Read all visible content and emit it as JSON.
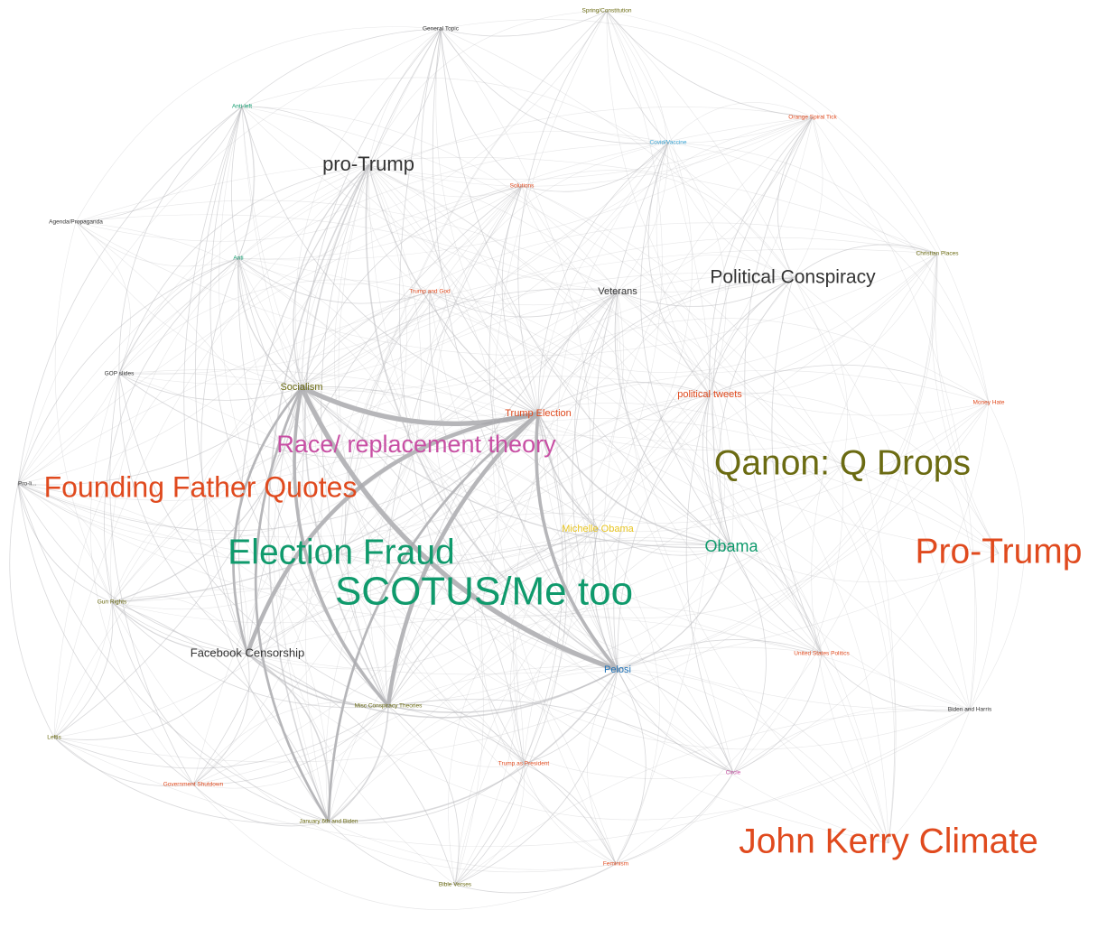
{
  "colors": {
    "edge": "#b9b9bd",
    "edge_heavy": "#a9a9ad",
    "orange": "#e04a1e",
    "green": "#0f9a6c",
    "olive": "#6b6b12",
    "magenta": "#c84fa4",
    "dark": "#333333",
    "blue": "#1d72b8",
    "yellow": "#e8c520",
    "cyan": "#3aa6d6"
  },
  "nodes": [
    {
      "id": "spring",
      "label": "Spring/Constitution",
      "color": "olive",
      "weight": 1
    },
    {
      "id": "general",
      "label": "General Topic",
      "color": "dark",
      "weight": 1
    },
    {
      "id": "antileft",
      "label": "Anti-left",
      "color": "green",
      "weight": 1
    },
    {
      "id": "protrump_a",
      "label": "pro-Trump",
      "color": "dark",
      "weight": 6
    },
    {
      "id": "covid",
      "label": "Covid/Vaccine",
      "color": "cyan",
      "weight": 1
    },
    {
      "id": "orange",
      "label": "Orange Spiral Tick",
      "color": "orange",
      "weight": 1
    },
    {
      "id": "agenda",
      "label": "Agenda/Propaganda",
      "color": "dark",
      "weight": 1
    },
    {
      "id": "anti",
      "label": "Anti",
      "color": "green",
      "weight": 1
    },
    {
      "id": "trumpgod",
      "label": "Trump and God",
      "color": "orange",
      "weight": 1
    },
    {
      "id": "veterans",
      "label": "Veterans",
      "color": "dark",
      "weight": 2
    },
    {
      "id": "polcons",
      "label": "Political Conspiracy",
      "color": "dark",
      "weight": 5
    },
    {
      "id": "christmas",
      "label": "Christian Places",
      "color": "olive",
      "weight": 1
    },
    {
      "id": "top",
      "label": "Solutions",
      "color": "orange",
      "weight": 1
    },
    {
      "id": "gop",
      "label": "GOP slides",
      "color": "dark",
      "weight": 1
    },
    {
      "id": "socialism",
      "label": "Socialism",
      "color": "olive",
      "weight": 2
    },
    {
      "id": "trumpelec",
      "label": "Trump Election",
      "color": "orange",
      "weight": 2
    },
    {
      "id": "poltweets",
      "label": "political tweets",
      "color": "orange",
      "weight": 2
    },
    {
      "id": "money",
      "label": "Money Hate",
      "color": "orange",
      "weight": 1
    },
    {
      "id": "race",
      "label": "Race/ replacement theory",
      "color": "magenta",
      "weight": 7
    },
    {
      "id": "qanon",
      "label": "Qanon: Q  Drops",
      "color": "olive",
      "weight": 9
    },
    {
      "id": "prolife",
      "label": "Pro-li...",
      "color": "dark",
      "weight": 1
    },
    {
      "id": "founding",
      "label": "Founding Father Quotes",
      "color": "orange",
      "weight": 8
    },
    {
      "id": "michelle",
      "label": "Michelle Obama",
      "color": "yellow",
      "weight": 2
    },
    {
      "id": "obama",
      "label": "Obama",
      "color": "green",
      "weight": 4
    },
    {
      "id": "protrump_b",
      "label": "Pro-Trump",
      "color": "orange",
      "weight": 9
    },
    {
      "id": "election",
      "label": "Election Fraud",
      "color": "green",
      "weight": 9
    },
    {
      "id": "scotus",
      "label": "SCOTUS/Me too",
      "color": "green",
      "weight": 10
    },
    {
      "id": "gunrights",
      "label": "Gun Rights",
      "color": "olive",
      "weight": 1
    },
    {
      "id": "fbcensor",
      "label": "Facebook Censorship",
      "color": "dark",
      "weight": 3
    },
    {
      "id": "pelosi",
      "label": "Pelosi",
      "color": "blue",
      "weight": 2
    },
    {
      "id": "misc",
      "label": "Misc Conspiracy Theories",
      "color": "olive",
      "weight": 1
    },
    {
      "id": "unitedstates",
      "label": "United States Politics",
      "color": "orange",
      "weight": 1
    },
    {
      "id": "bidenharris",
      "label": "Biden and Harris",
      "color": "dark",
      "weight": 1
    },
    {
      "id": "leftis",
      "label": "Leftis",
      "color": "olive",
      "weight": 1
    },
    {
      "id": "trumpprez",
      "label": "Trump as President",
      "color": "orange",
      "weight": 1
    },
    {
      "id": "govshutdown",
      "label": "Government Shutdown",
      "color": "orange",
      "weight": 1
    },
    {
      "id": "pinkcircle",
      "label": "Circle",
      "color": "magenta",
      "weight": 1
    },
    {
      "id": "january",
      "label": "January 6th and Biden",
      "color": "olive",
      "weight": 1
    },
    {
      "id": "johnkerry",
      "label": "John Kerry Climate",
      "color": "orange",
      "weight": 9
    },
    {
      "id": "feminism",
      "label": "Feminism",
      "color": "orange",
      "weight": 1
    },
    {
      "id": "bottom_b",
      "label": "Bible Verses",
      "color": "olive",
      "weight": 1
    }
  ],
  "edges": [
    [
      "socialism",
      "trumpelec",
      6
    ],
    [
      "socialism",
      "pelosi",
      6
    ],
    [
      "socialism",
      "misc",
      4
    ],
    [
      "socialism",
      "fbcensor",
      3
    ],
    [
      "trumpelec",
      "fbcensor",
      5
    ],
    [
      "trumpelec",
      "misc",
      5
    ],
    [
      "trumpelec",
      "pelosi",
      4
    ],
    [
      "trumpelec",
      "january",
      3
    ],
    [
      "socialism",
      "january",
      3
    ],
    [
      "fbcensor",
      "pelosi",
      2
    ],
    [
      "misc",
      "pelosi",
      2
    ],
    [
      "fbcensor",
      "misc",
      2
    ],
    [
      "protrump_a",
      "january",
      2
    ],
    [
      "protrump_a",
      "misc",
      2
    ],
    [
      "protrump_a",
      "pelosi",
      2
    ],
    [
      "trumpelec",
      "michelle",
      2
    ],
    [
      "socialism",
      "obama",
      1.5
    ],
    [
      "trumpelec",
      "obama",
      2
    ],
    [
      "pelosi",
      "obama",
      1.5
    ],
    [
      "gunrights",
      "socialism",
      1.5
    ],
    [
      "gunrights",
      "trumpelec",
      1.5
    ],
    [
      "gunrights",
      "fbcensor",
      1.5
    ],
    [
      "gunrights",
      "misc",
      1
    ],
    [
      "anti",
      "socialism",
      1.5
    ],
    [
      "anti",
      "pelosi",
      1
    ],
    [
      "anti",
      "misc",
      1
    ],
    [
      "anti",
      "fbcensor",
      1
    ],
    [
      "antileft",
      "socialism",
      1
    ],
    [
      "antileft",
      "trumpelec",
      1
    ],
    [
      "antileft",
      "misc",
      1
    ],
    [
      "antileft",
      "fbcensor",
      1
    ],
    [
      "antileft",
      "prolife",
      1
    ],
    [
      "antileft",
      "gop",
      1
    ],
    [
      "antileft",
      "january",
      1
    ],
    [
      "general",
      "trumpelec",
      1
    ],
    [
      "general",
      "socialism",
      1
    ],
    [
      "general",
      "pelosi",
      1
    ],
    [
      "general",
      "obama",
      1
    ],
    [
      "general",
      "misc",
      1
    ],
    [
      "general",
      "covid",
      1
    ],
    [
      "general",
      "spring",
      1
    ],
    [
      "general",
      "trumpprez",
      1
    ],
    [
      "top",
      "trumpelec",
      1
    ],
    [
      "top",
      "socialism",
      1
    ],
    [
      "top",
      "pelosi",
      1
    ],
    [
      "top",
      "misc",
      1
    ],
    [
      "top",
      "fbcensor",
      1
    ],
    [
      "trumpgod",
      "trumpelec",
      1
    ],
    [
      "trumpgod",
      "pelosi",
      1
    ],
    [
      "trumpgod",
      "misc",
      1
    ],
    [
      "trumpgod",
      "socialism",
      1
    ],
    [
      "veterans",
      "trumpelec",
      1
    ],
    [
      "veterans",
      "pelosi",
      1
    ],
    [
      "veterans",
      "michelle",
      1
    ],
    [
      "veterans",
      "obama",
      1
    ],
    [
      "veterans",
      "misc",
      1
    ],
    [
      "veterans",
      "socialism",
      1
    ],
    [
      "polcons",
      "trumpelec",
      1
    ],
    [
      "polcons",
      "obama",
      1
    ],
    [
      "polcons",
      "pelosi",
      1
    ],
    [
      "polcons",
      "unitedstates",
      1
    ],
    [
      "polcons",
      "poltweets",
      1
    ],
    [
      "covid",
      "trumpelec",
      1
    ],
    [
      "covid",
      "obama",
      1
    ],
    [
      "covid",
      "poltweets",
      1
    ],
    [
      "covid",
      "pelosi",
      1
    ],
    [
      "orange",
      "poltweets",
      1
    ],
    [
      "orange",
      "obama",
      1
    ],
    [
      "orange",
      "unitedstates",
      1
    ],
    [
      "orange",
      "polcons",
      1
    ],
    [
      "poltweets",
      "pelosi",
      1
    ],
    [
      "poltweets",
      "obama",
      1
    ],
    [
      "poltweets",
      "trumpelec",
      1
    ],
    [
      "poltweets",
      "misc",
      1
    ],
    [
      "poltweets",
      "unitedstates",
      1
    ],
    [
      "poltweets",
      "pinkcircle",
      1
    ],
    [
      "gop",
      "socialism",
      1
    ],
    [
      "gop",
      "fbcensor",
      1
    ],
    [
      "gop",
      "misc",
      1
    ],
    [
      "gop",
      "trumpelec",
      1
    ],
    [
      "gop",
      "govshutdown",
      1
    ],
    [
      "prolife",
      "socialism",
      1
    ],
    [
      "prolife",
      "fbcensor",
      1
    ],
    [
      "prolife",
      "gunrights",
      1
    ],
    [
      "prolife",
      "trumpelec",
      1
    ],
    [
      "prolife",
      "leftis",
      1
    ],
    [
      "prolife",
      "govshutdown",
      1
    ],
    [
      "prolife",
      "january",
      1
    ],
    [
      "leftis",
      "gunrights",
      1
    ],
    [
      "leftis",
      "fbcensor",
      1
    ],
    [
      "leftis",
      "socialism",
      1
    ],
    [
      "leftis",
      "january",
      1
    ],
    [
      "leftis",
      "govshutdown",
      1
    ],
    [
      "govshutdown",
      "january",
      1
    ],
    [
      "govshutdown",
      "fbcensor",
      1
    ],
    [
      "govshutdown",
      "socialism",
      1
    ],
    [
      "govshutdown",
      "misc",
      1
    ],
    [
      "january",
      "misc",
      2
    ],
    [
      "january",
      "pelosi",
      2
    ],
    [
      "january",
      "fbcensor",
      2
    ],
    [
      "january",
      "bottom_b",
      1
    ],
    [
      "january",
      "trumpprez",
      1
    ],
    [
      "january",
      "gunrights",
      1
    ],
    [
      "bottom_b",
      "pelosi",
      1
    ],
    [
      "bottom_b",
      "misc",
      1
    ],
    [
      "bottom_b",
      "trumpprez",
      1
    ],
    [
      "bottom_b",
      "feminism",
      1
    ],
    [
      "bottom_b",
      "fbcensor",
      1
    ],
    [
      "bottom_b",
      "trumpelec",
      1
    ],
    [
      "feminism",
      "pelosi",
      1
    ],
    [
      "feminism",
      "pinkcircle",
      1
    ],
    [
      "feminism",
      "trumpprez",
      1
    ],
    [
      "feminism",
      "misc",
      1
    ],
    [
      "trumpprez",
      "pelosi",
      1
    ],
    [
      "trumpprez",
      "misc",
      1
    ],
    [
      "trumpprez",
      "trumpelec",
      1
    ],
    [
      "trumpprez",
      "socialism",
      1
    ],
    [
      "pinkcircle",
      "pelosi",
      1
    ],
    [
      "pinkcircle",
      "unitedstates",
      1
    ],
    [
      "pinkcircle",
      "obama",
      1
    ],
    [
      "pinkcircle",
      "misc",
      1
    ],
    [
      "unitedstates",
      "pelosi",
      1
    ],
    [
      "unitedstates",
      "obama",
      1
    ],
    [
      "unitedstates",
      "bidenharris",
      1
    ],
    [
      "protrump_a",
      "socialism",
      1.5
    ],
    [
      "protrump_a",
      "trumpelec",
      1.5
    ],
    [
      "protrump_a",
      "fbcensor",
      1.5
    ],
    [
      "protrump_a",
      "antileft",
      1
    ],
    [
      "protrump_a",
      "general",
      1
    ],
    [
      "protrump_a",
      "gop",
      1
    ],
    [
      "anti",
      "antileft",
      1
    ],
    [
      "anti",
      "gop",
      1
    ],
    [
      "anti",
      "prolife",
      1
    ],
    [
      "anti",
      "trumpgod",
      1
    ],
    [
      "anti",
      "gunrights",
      1
    ],
    [
      "michelle",
      "pelosi",
      1.5
    ],
    [
      "michelle",
      "misc",
      1
    ],
    [
      "michelle",
      "obama",
      1
    ],
    [
      "michelle",
      "socialism",
      1
    ],
    [
      "obama",
      "misc",
      1
    ],
    [
      "obama",
      "fbcensor",
      1
    ],
    [
      "pelosi",
      "pinkcircle",
      1
    ],
    [
      "veterans",
      "polcons",
      1
    ],
    [
      "trumpgod",
      "veterans",
      1
    ],
    [
      "top",
      "covid",
      1
    ],
    [
      "spring",
      "covid",
      1
    ],
    [
      "spring",
      "orange",
      1
    ],
    [
      "spring",
      "trumpelec",
      1
    ],
    [
      "leftis",
      "misc",
      1
    ],
    [
      "gunrights",
      "january",
      1
    ],
    [
      "general",
      "antileft",
      1
    ],
    [
      "general",
      "top",
      1
    ],
    [
      "money",
      "poltweets",
      1
    ],
    [
      "christmas",
      "polcons",
      1
    ],
    [
      "agenda",
      "antileft",
      1
    ]
  ]
}
